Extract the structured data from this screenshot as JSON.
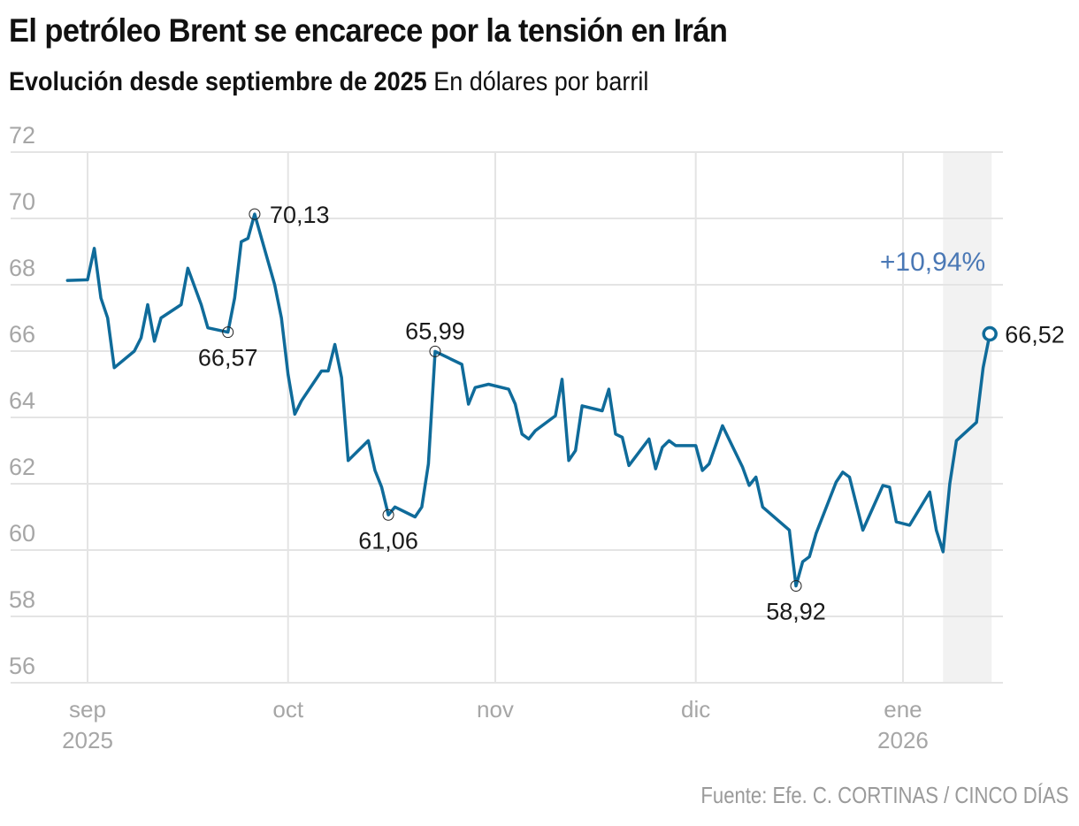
{
  "header": {
    "title": "El petróleo Brent se encarece por la tensión en Irán",
    "subtitle_bold": "Evolución desde septiembre de 2025",
    "subtitle_rest": " En dólares por barril"
  },
  "source": "Fuente: Efe. C. CORTINAS / CINCO DÍAS",
  "colors": {
    "line": "#0f6b9a",
    "grid": "#e4e4e4",
    "highlight": "#f2f2f2",
    "pct": "#4a78b5",
    "axis_text": "#a6a6a6"
  },
  "chart_data": {
    "type": "line",
    "title": "El petróleo Brent se encarece por la tensión en Irán",
    "subtitle": "Evolución desde septiembre de 2025. En dólares por barril",
    "xlabel": "",
    "ylabel": "Dólares por barril",
    "x_unit": "days since 2025-09-01",
    "ylim": [
      56,
      72
    ],
    "xlim": [
      -3,
      135
    ],
    "grid": true,
    "yticks": [
      56,
      58,
      60,
      62,
      64,
      66,
      68,
      70,
      72
    ],
    "ytick_labels": [
      "56",
      "58",
      "60",
      "62",
      "64",
      "66",
      "68",
      "70",
      "72"
    ],
    "xticks": [
      {
        "day": 0,
        "label": "sep",
        "year": "2025"
      },
      {
        "day": 30,
        "label": "oct",
        "year": ""
      },
      {
        "day": 61,
        "label": "nov",
        "year": ""
      },
      {
        "day": 91,
        "label": "dic",
        "year": ""
      },
      {
        "day": 122,
        "label": "ene",
        "year": "2026"
      }
    ],
    "highlight_range": [
      128,
      135
    ],
    "series": [
      {
        "name": "Brent",
        "x": [
          -3,
          0,
          1,
          2,
          3,
          4,
          7,
          8,
          9,
          10,
          11,
          14,
          15,
          17,
          18,
          21,
          22,
          23,
          24,
          25,
          28,
          29,
          30,
          31,
          32,
          35,
          36,
          37,
          38,
          39,
          42,
          43,
          44,
          45,
          46,
          49,
          50,
          51,
          52,
          56,
          57,
          58,
          60,
          63,
          64,
          65,
          66,
          67,
          70,
          71,
          72,
          73,
          74,
          77,
          78,
          79,
          80,
          81,
          84,
          85,
          86,
          87,
          88,
          91,
          92,
          93,
          95,
          98,
          99,
          100,
          101,
          105,
          106,
          107,
          108,
          109,
          112,
          113,
          114,
          116,
          119,
          120,
          121,
          123,
          126,
          127,
          128,
          129,
          130,
          133,
          134,
          135
        ],
        "values": [
          68.13,
          68.15,
          69.1,
          67.6,
          67.0,
          65.5,
          66.0,
          66.4,
          67.4,
          66.3,
          67.0,
          67.4,
          68.5,
          67.4,
          66.7,
          66.57,
          67.6,
          69.3,
          69.4,
          70.13,
          68.0,
          67.0,
          65.3,
          64.1,
          64.5,
          65.4,
          65.4,
          66.2,
          65.2,
          62.7,
          63.3,
          62.4,
          61.9,
          61.06,
          61.3,
          61.0,
          61.3,
          62.6,
          65.99,
          65.6,
          64.4,
          64.9,
          65.0,
          64.85,
          64.4,
          63.5,
          63.35,
          63.6,
          64.05,
          65.15,
          62.7,
          63.0,
          64.35,
          64.2,
          64.85,
          63.5,
          63.4,
          62.55,
          63.35,
          62.45,
          63.1,
          63.3,
          63.15,
          63.15,
          62.4,
          62.6,
          63.75,
          62.5,
          61.95,
          62.2,
          61.3,
          60.6,
          58.92,
          59.65,
          59.8,
          60.5,
          62.05,
          62.35,
          62.2,
          60.6,
          61.95,
          61.9,
          60.85,
          60.75,
          61.75,
          60.6,
          59.95,
          62.0,
          63.3,
          63.85,
          65.5,
          66.52
        ]
      }
    ],
    "annotations": [
      {
        "day": 25,
        "value": 70.13,
        "label": "70,13",
        "position": "right"
      },
      {
        "day": 21,
        "value": 66.57,
        "label": "66,57",
        "position": "below"
      },
      {
        "day": 45,
        "value": 61.06,
        "label": "61,06",
        "position": "below"
      },
      {
        "day": 52,
        "value": 65.99,
        "label": "65,99",
        "position": "above"
      },
      {
        "day": 106,
        "value": 58.92,
        "label": "58,92",
        "position": "below"
      },
      {
        "day": 135,
        "value": 66.52,
        "label": "66,52",
        "position": "right",
        "endpoint": true
      }
    ],
    "change_label": "+10,94%"
  }
}
